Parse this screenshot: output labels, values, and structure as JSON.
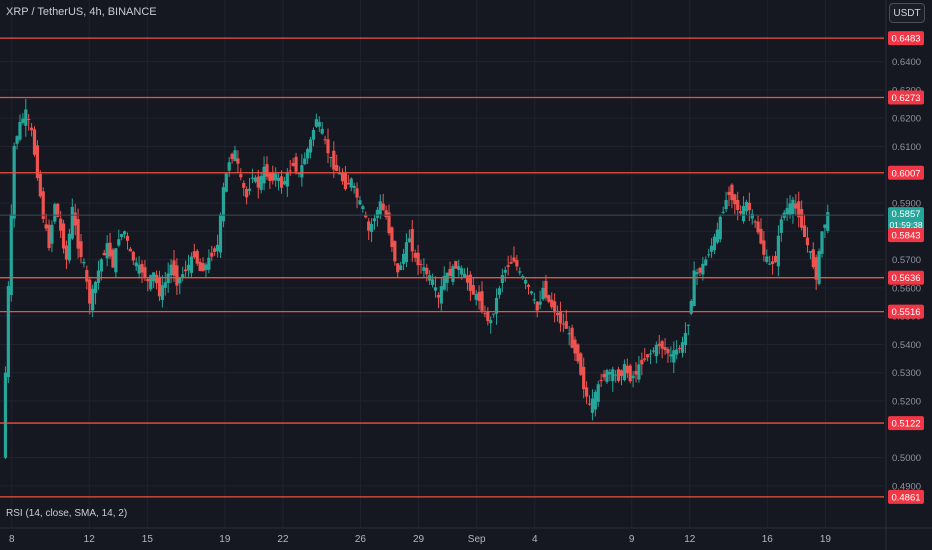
{
  "header": {
    "title": "XRP / TetherUS, 4h, BINANCE",
    "currency_button": "USDT"
  },
  "indicator": {
    "label": "RSI (14, close, SMA, 14, 2)"
  },
  "colors": {
    "background": "#151821",
    "grid": "#1f2330",
    "up": "#26a69a",
    "down": "#ef5350",
    "level_line": "#f0503c",
    "level_label_bg": "#f23645",
    "current_price_bg": "#26a69a",
    "axis_text": "#b2b5be"
  },
  "chart_data": {
    "type": "candlestick",
    "symbol": "XRP / TetherUS",
    "interval": "4h",
    "exchange": "BINANCE",
    "ylim": [
      0.485,
      0.654
    ],
    "y_ticks": [
      "0.6400",
      "0.6300",
      "0.6200",
      "0.6100",
      "0.6000",
      "0.5900",
      "0.5800",
      "0.5700",
      "0.5600",
      "0.5500",
      "0.5400",
      "0.5300",
      "0.5200",
      "0.5000",
      "0.4900"
    ],
    "x_ticks": [
      {
        "label": "8",
        "day": 8
      },
      {
        "label": "12",
        "day": 12
      },
      {
        "label": "15",
        "day": 15
      },
      {
        "label": "19",
        "day": 19
      },
      {
        "label": "22",
        "day": 22
      },
      {
        "label": "26",
        "day": 26
      },
      {
        "label": "29",
        "day": 29
      },
      {
        "label": "Sep",
        "day": 32
      },
      {
        "label": "4",
        "day": 35
      },
      {
        "label": "9",
        "day": 40
      },
      {
        "label": "12",
        "day": 43
      },
      {
        "label": "16",
        "day": 47
      },
      {
        "label": "19",
        "day": 50
      }
    ],
    "x_range_days": [
      7.6,
      52.2
    ],
    "horizontal_levels": [
      "0.6483",
      "0.6273",
      "0.6007",
      "0.5636",
      "0.5516",
      "0.5122",
      "0.4861"
    ],
    "minor_level": "0.5843",
    "current_price": {
      "value": "0.5857",
      "countdown": "01:59:38"
    },
    "close_path": [
      [
        7.6,
        0.5
      ],
      [
        7.9,
        0.56
      ],
      [
        8.2,
        0.61
      ],
      [
        8.5,
        0.618
      ],
      [
        8.8,
        0.622
      ],
      [
        9.1,
        0.615
      ],
      [
        9.4,
        0.6
      ],
      [
        9.7,
        0.585
      ],
      [
        10.0,
        0.575
      ],
      [
        10.3,
        0.59
      ],
      [
        10.6,
        0.58
      ],
      [
        10.9,
        0.57
      ],
      [
        11.2,
        0.588
      ],
      [
        11.5,
        0.575
      ],
      [
        11.8,
        0.568
      ],
      [
        12.1,
        0.555
      ],
      [
        12.4,
        0.562
      ],
      [
        12.7,
        0.57
      ],
      [
        13.0,
        0.575
      ],
      [
        13.3,
        0.568
      ],
      [
        13.6,
        0.578
      ],
      [
        13.9,
        0.58
      ],
      [
        14.2,
        0.572
      ],
      [
        14.5,
        0.568
      ],
      [
        14.8,
        0.566
      ],
      [
        15.1,
        0.562
      ],
      [
        15.4,
        0.565
      ],
      [
        15.7,
        0.558
      ],
      [
        16.0,
        0.562
      ],
      [
        16.3,
        0.568
      ],
      [
        16.6,
        0.562
      ],
      [
        16.9,
        0.565
      ],
      [
        17.2,
        0.568
      ],
      [
        17.5,
        0.572
      ],
      [
        17.8,
        0.566
      ],
      [
        18.1,
        0.568
      ],
      [
        18.4,
        0.572
      ],
      [
        18.7,
        0.575
      ],
      [
        19.0,
        0.595
      ],
      [
        19.3,
        0.605
      ],
      [
        19.6,
        0.608
      ],
      [
        19.9,
        0.598
      ],
      [
        20.2,
        0.592
      ],
      [
        20.5,
        0.6
      ],
      [
        20.8,
        0.596
      ],
      [
        21.1,
        0.602
      ],
      [
        21.4,
        0.598
      ],
      [
        21.7,
        0.6
      ],
      [
        22.0,
        0.596
      ],
      [
        22.3,
        0.6
      ],
      [
        22.6,
        0.604
      ],
      [
        22.9,
        0.6
      ],
      [
        23.2,
        0.606
      ],
      [
        23.5,
        0.612
      ],
      [
        23.8,
        0.62
      ],
      [
        24.1,
        0.615
      ],
      [
        24.4,
        0.608
      ],
      [
        24.7,
        0.603
      ],
      [
        25.0,
        0.6
      ],
      [
        25.3,
        0.596
      ],
      [
        25.6,
        0.598
      ],
      [
        25.9,
        0.592
      ],
      [
        26.2,
        0.588
      ],
      [
        26.5,
        0.58
      ],
      [
        26.8,
        0.585
      ],
      [
        27.1,
        0.59
      ],
      [
        27.4,
        0.585
      ],
      [
        27.7,
        0.575
      ],
      [
        28.0,
        0.565
      ],
      [
        28.3,
        0.572
      ],
      [
        28.6,
        0.578
      ],
      [
        28.9,
        0.57
      ],
      [
        29.2,
        0.568
      ],
      [
        29.5,
        0.565
      ],
      [
        29.8,
        0.562
      ],
      [
        30.1,
        0.556
      ],
      [
        30.4,
        0.564
      ],
      [
        30.7,
        0.565
      ],
      [
        31.0,
        0.568
      ],
      [
        31.3,
        0.566
      ],
      [
        31.6,
        0.562
      ],
      [
        31.9,
        0.558
      ],
      [
        32.2,
        0.556
      ],
      [
        32.5,
        0.55
      ],
      [
        32.8,
        0.548
      ],
      [
        33.1,
        0.556
      ],
      [
        33.4,
        0.565
      ],
      [
        33.7,
        0.568
      ],
      [
        34.0,
        0.57
      ],
      [
        34.3,
        0.565
      ],
      [
        34.6,
        0.562
      ],
      [
        34.9,
        0.558
      ],
      [
        35.2,
        0.552
      ],
      [
        35.5,
        0.56
      ],
      [
        35.8,
        0.555
      ],
      [
        36.1,
        0.552
      ],
      [
        36.4,
        0.548
      ],
      [
        36.7,
        0.546
      ],
      [
        37.0,
        0.54
      ],
      [
        37.3,
        0.535
      ],
      [
        37.6,
        0.525
      ],
      [
        37.9,
        0.518
      ],
      [
        38.2,
        0.522
      ],
      [
        38.5,
        0.528
      ],
      [
        38.8,
        0.53
      ],
      [
        39.1,
        0.53
      ],
      [
        39.4,
        0.528
      ],
      [
        39.7,
        0.532
      ],
      [
        40.0,
        0.528
      ],
      [
        40.3,
        0.53
      ],
      [
        40.6,
        0.534
      ],
      [
        40.9,
        0.536
      ],
      [
        41.2,
        0.538
      ],
      [
        41.5,
        0.54
      ],
      [
        41.8,
        0.538
      ],
      [
        42.1,
        0.536
      ],
      [
        42.4,
        0.538
      ],
      [
        42.7,
        0.54
      ],
      [
        43.0,
        0.548
      ],
      [
        43.3,
        0.565
      ],
      [
        43.6,
        0.566
      ],
      [
        43.9,
        0.57
      ],
      [
        44.2,
        0.575
      ],
      [
        44.5,
        0.58
      ],
      [
        44.8,
        0.588
      ],
      [
        45.1,
        0.594
      ],
      [
        45.4,
        0.59
      ],
      [
        45.7,
        0.586
      ],
      [
        46.0,
        0.59
      ],
      [
        46.3,
        0.585
      ],
      [
        46.6,
        0.58
      ],
      [
        46.9,
        0.572
      ],
      [
        47.2,
        0.568
      ],
      [
        47.5,
        0.57
      ],
      [
        47.8,
        0.585
      ],
      [
        48.1,
        0.588
      ],
      [
        48.4,
        0.59
      ],
      [
        48.7,
        0.586
      ],
      [
        49.0,
        0.578
      ],
      [
        49.3,
        0.572
      ],
      [
        49.6,
        0.564
      ],
      [
        49.9,
        0.58
      ],
      [
        50.2,
        0.5857
      ]
    ]
  }
}
